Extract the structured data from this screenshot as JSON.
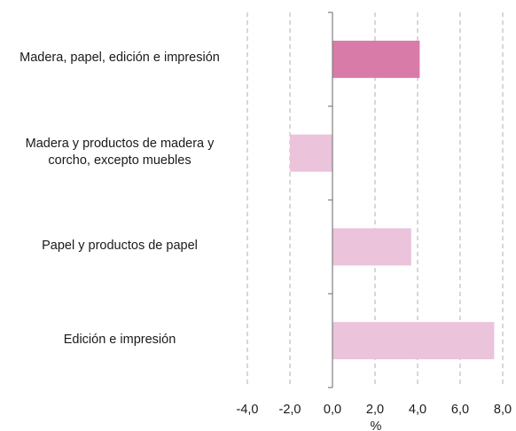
{
  "chart_data": {
    "type": "bar",
    "orientation": "horizontal",
    "categories": [
      "Madera, papel, edición e impresión",
      "Madera y productos de madera y corcho, excepto muebles",
      "Papel y productos de papel",
      "Edición e impresión"
    ],
    "category_lines": [
      [
        "Madera, papel, edición e impresión"
      ],
      [
        "Madera y productos de madera y",
        "corcho, excepto muebles"
      ],
      [
        "Papel y productos de papel"
      ],
      [
        "Edición e impresión"
      ]
    ],
    "values": [
      4.1,
      -2.0,
      3.7,
      7.6
    ],
    "xlim": [
      -4.0,
      8.0
    ],
    "xticks": [
      "-4,0",
      "-2,0",
      "0,0",
      "2,0",
      "4,0",
      "6,0",
      "8,0"
    ],
    "xlabel": "%",
    "grid": "vertical-dashed",
    "colors": {
      "highlight": "#d97ba8",
      "bar": "#ebc3db",
      "grid": "#b0b0b0",
      "axis": "#7f7f7f"
    },
    "highlight_index": 0
  }
}
